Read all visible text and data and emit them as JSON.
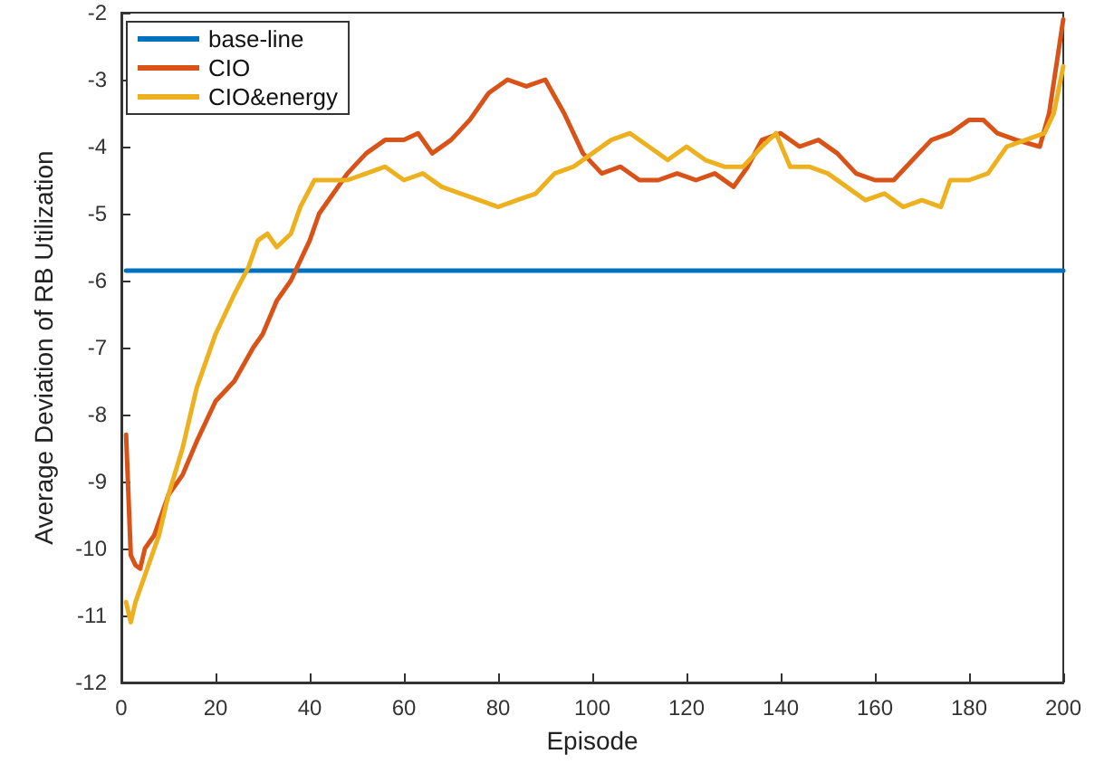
{
  "chart_data": {
    "type": "line",
    "xlabel": "Episode",
    "ylabel": "Average Deviation of RB Utilization",
    "xlim": [
      0,
      200
    ],
    "xticks": [
      0,
      20,
      40,
      60,
      80,
      100,
      120,
      140,
      160,
      180,
      200
    ],
    "ylim": [
      -12,
      -2
    ],
    "yticks": [
      -12,
      -11,
      -10,
      -9,
      -8,
      -7,
      -6,
      -5,
      -4,
      -3,
      -2
    ],
    "grid": false,
    "legend": "top left",
    "marker": "none",
    "line_style": "solid",
    "series": [
      {
        "name": "base-line",
        "color": "#0072bd",
        "x": [
          1,
          200
        ],
        "values": [
          -5.85,
          -5.85
        ]
      },
      {
        "name": "CIO",
        "color": "#d95319",
        "x": [
          1,
          2,
          3,
          4,
          5,
          7,
          10,
          13,
          16,
          20,
          24,
          28,
          30,
          33,
          36,
          40,
          42,
          45,
          48,
          52,
          56,
          60,
          63,
          66,
          70,
          74,
          78,
          82,
          86,
          90,
          94,
          98,
          102,
          106,
          110,
          114,
          118,
          122,
          126,
          130,
          133,
          136,
          140,
          144,
          148,
          152,
          156,
          160,
          164,
          168,
          172,
          176,
          180,
          183,
          186,
          190,
          195,
          197,
          200
        ],
        "values": [
          -8.3,
          -10.1,
          -10.25,
          -10.3,
          -10.0,
          -9.8,
          -9.2,
          -8.9,
          -8.4,
          -7.8,
          -7.5,
          -7.0,
          -6.8,
          -6.3,
          -6.0,
          -5.4,
          -5.0,
          -4.7,
          -4.4,
          -4.1,
          -3.9,
          -3.9,
          -3.8,
          -4.1,
          -3.9,
          -3.6,
          -3.2,
          -3.0,
          -3.1,
          -3.0,
          -3.5,
          -4.1,
          -4.4,
          -4.3,
          -4.5,
          -4.5,
          -4.4,
          -4.5,
          -4.4,
          -4.6,
          -4.3,
          -3.9,
          -3.8,
          -4.0,
          -3.9,
          -4.1,
          -4.4,
          -4.5,
          -4.5,
          -4.2,
          -3.9,
          -3.8,
          -3.6,
          -3.6,
          -3.8,
          -3.9,
          -4.0,
          -3.5,
          -2.1
        ]
      },
      {
        "name": "CIO&energy",
        "color": "#edb120",
        "x": [
          1,
          2,
          3,
          5,
          8,
          10,
          13,
          16,
          20,
          24,
          27,
          29,
          31,
          33,
          36,
          38,
          41,
          44,
          48,
          52,
          56,
          60,
          64,
          68,
          72,
          76,
          80,
          84,
          88,
          92,
          96,
          100,
          104,
          108,
          112,
          116,
          120,
          124,
          128,
          132,
          136,
          139,
          142,
          146,
          150,
          154,
          158,
          162,
          166,
          170,
          174,
          176,
          180,
          184,
          188,
          192,
          196,
          198,
          200
        ],
        "values": [
          -10.8,
          -11.1,
          -10.8,
          -10.4,
          -9.8,
          -9.2,
          -8.5,
          -7.6,
          -6.8,
          -6.2,
          -5.8,
          -5.4,
          -5.3,
          -5.5,
          -5.3,
          -4.9,
          -4.5,
          -4.5,
          -4.5,
          -4.4,
          -4.3,
          -4.5,
          -4.4,
          -4.6,
          -4.7,
          -4.8,
          -4.9,
          -4.8,
          -4.7,
          -4.4,
          -4.3,
          -4.1,
          -3.9,
          -3.8,
          -4.0,
          -4.2,
          -4.0,
          -4.2,
          -4.3,
          -4.3,
          -4.0,
          -3.8,
          -4.3,
          -4.3,
          -4.4,
          -4.6,
          -4.8,
          -4.7,
          -4.9,
          -4.8,
          -4.9,
          -4.5,
          -4.5,
          -4.4,
          -4.0,
          -3.9,
          -3.8,
          -3.5,
          -2.8
        ]
      }
    ]
  }
}
